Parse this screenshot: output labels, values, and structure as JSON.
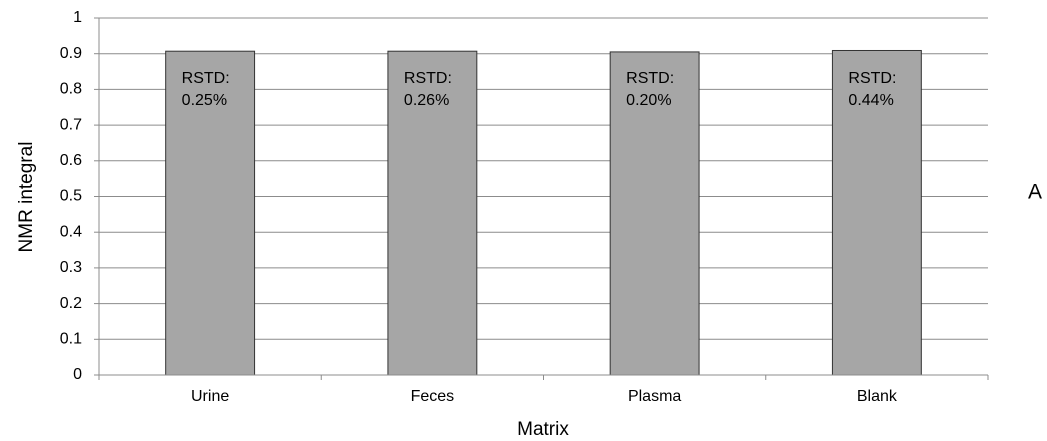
{
  "chart_data": {
    "type": "bar",
    "y_label": "NMR integral",
    "x_label": "Matrix",
    "panel_label": "A",
    "categories": [
      "Urine",
      "Feces",
      "Plasma",
      "Blank"
    ],
    "values": [
      0.907,
      0.907,
      0.905,
      0.909
    ],
    "annotations": [
      [
        "RSTD:",
        "0.25%"
      ],
      [
        "RSTD:",
        "0.26%"
      ],
      [
        "RSTD:",
        "0.20%"
      ],
      [
        "RSTD:",
        "0.44%"
      ]
    ],
    "color": "#a6a6a6",
    "ylim": [
      0,
      1
    ],
    "yticks": [
      0,
      0.1,
      0.2,
      0.3,
      0.4,
      0.5,
      0.6,
      0.7,
      0.8,
      0.9,
      1
    ],
    "grid": true
  }
}
